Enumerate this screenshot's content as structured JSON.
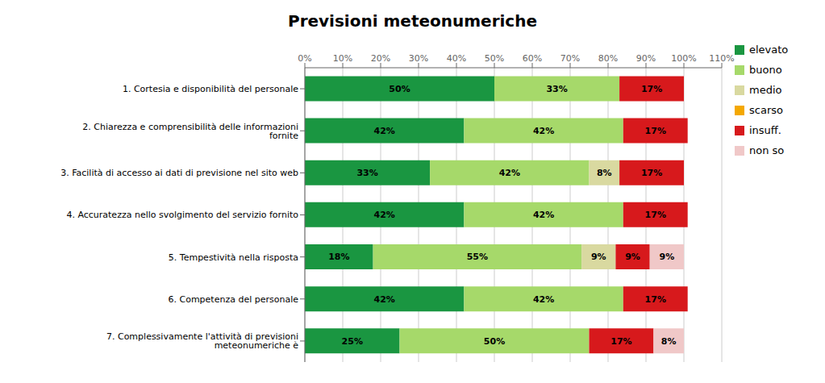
{
  "chart_data": {
    "type": "bar",
    "title": "Previsioni meteonumeriche",
    "orientation": "horizontal",
    "stacked": true,
    "data_labels": true,
    "grid": true,
    "legend": "right",
    "categories": [
      "1. Cortesia e disponibilità del personale",
      "2. Chiarezza e comprensibilità delle informazioni fornite",
      "3. Facilità di accesso ai dati di previsione nel sito web",
      "4. Accuratezza nello svolgimento del servizio fornito",
      "5. Tempestività nella risposta",
      "6. Competenza del personale",
      "7. Complessivamente l'attività di previsioni meteonumeriche è"
    ],
    "xlim": [
      0,
      110
    ],
    "xticks": [
      {
        "value": 0,
        "label": "0%"
      },
      {
        "value": 10,
        "label": "10%"
      },
      {
        "value": 20,
        "label": "20%"
      },
      {
        "value": 30,
        "label": "30%"
      },
      {
        "value": 40,
        "label": "40%"
      },
      {
        "value": 50,
        "label": "50%"
      },
      {
        "value": 60,
        "label": "60%"
      },
      {
        "value": 70,
        "label": "70%"
      },
      {
        "value": 80,
        "label": "80%"
      },
      {
        "value": 90,
        "label": "90%"
      },
      {
        "value": 100,
        "label": "100%"
      },
      {
        "value": 110,
        "label": "110%"
      }
    ],
    "series": [
      {
        "name": "elevato",
        "color": "#1a9641",
        "values": [
          50,
          42,
          33,
          42,
          18,
          42,
          25
        ],
        "value_labels": [
          "50%",
          "42%",
          "33%",
          "42%",
          "18%",
          "42%",
          "25%"
        ]
      },
      {
        "name": "buono",
        "color": "#a6d96a",
        "values": [
          33,
          42,
          42,
          42,
          55,
          42,
          50
        ],
        "value_labels": [
          "33%",
          "42%",
          "42%",
          "42%",
          "55%",
          "42%",
          "50%"
        ]
      },
      {
        "name": "medio",
        "color": "#d9d9a0",
        "values": [
          0,
          0,
          8,
          0,
          9,
          0,
          0
        ],
        "value_labels": [
          null,
          null,
          "8%",
          null,
          "9%",
          null,
          null
        ]
      },
      {
        "name": "scarso",
        "color": "#f4a800",
        "values": [
          0,
          0,
          0,
          0,
          0,
          0,
          0
        ],
        "value_labels": [
          null,
          null,
          null,
          null,
          null,
          null,
          null
        ]
      },
      {
        "name": "insuff.",
        "color": "#d7191c",
        "values": [
          17,
          17,
          17,
          17,
          9,
          17,
          17
        ],
        "value_labels": [
          "17%",
          "17%",
          "17%",
          "17%",
          "9%",
          "17%",
          "17%"
        ]
      },
      {
        "name": "non so",
        "color": "#f0c8c8",
        "values": [
          0,
          0,
          0,
          0,
          9,
          0,
          8
        ],
        "value_labels": [
          null,
          null,
          null,
          null,
          "9%",
          null,
          "8%"
        ]
      }
    ]
  }
}
